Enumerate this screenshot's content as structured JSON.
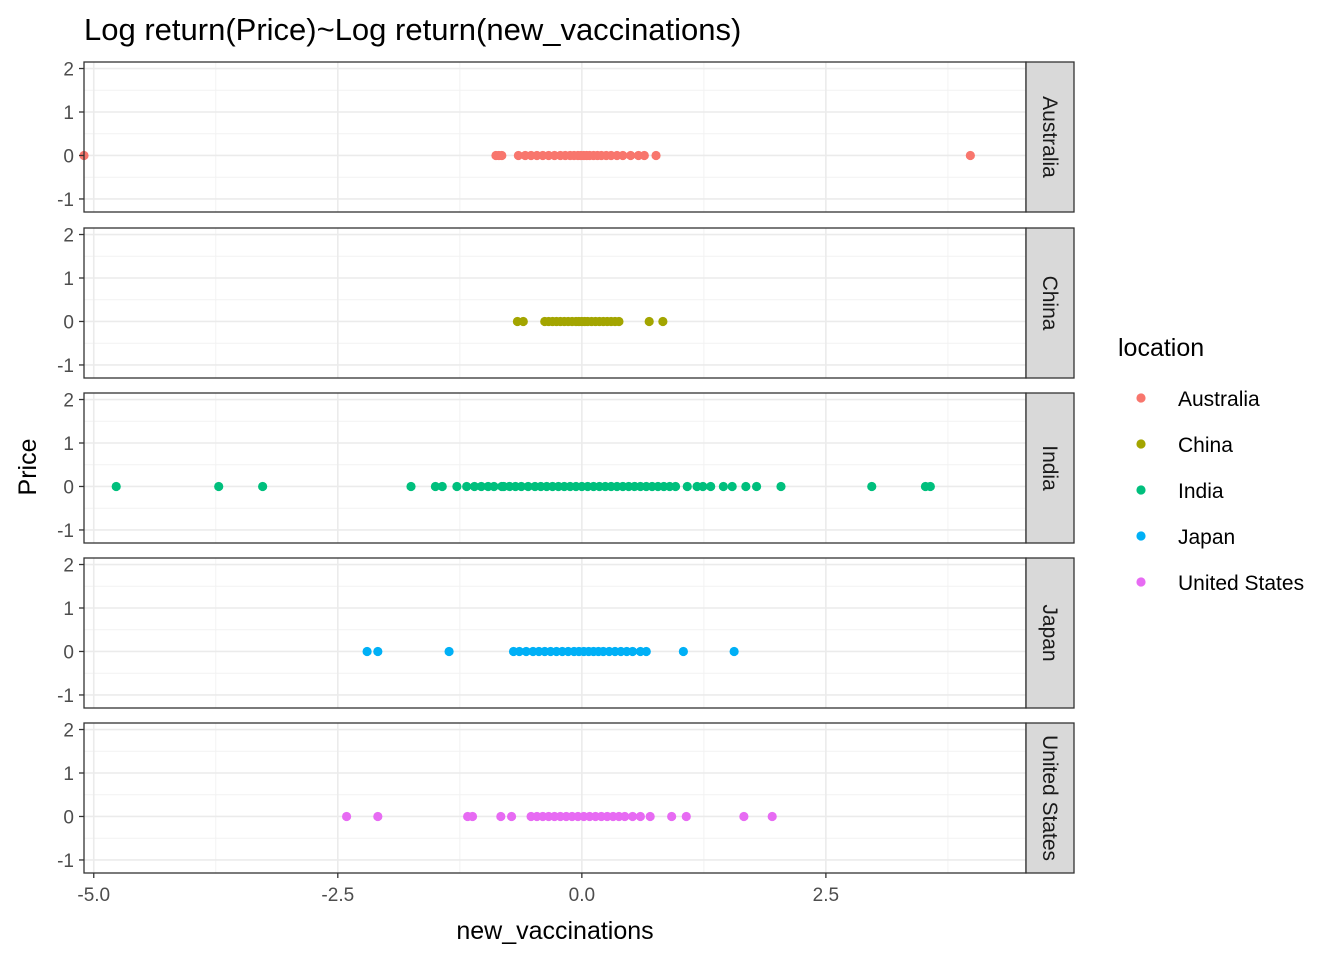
{
  "chart_data": {
    "type": "scatter",
    "title": "Log return(Price)~Log return(new_vaccinations)",
    "xlabel": "new_vaccinations",
    "ylabel": "Price",
    "xlim": [
      -5.1,
      4.55
    ],
    "ylim": [
      -1.3,
      2.15
    ],
    "x_ticks": [
      -5.0,
      -2.5,
      0.0,
      2.5
    ],
    "x_tick_labels": [
      "-5.0",
      "-2.5",
      "0.0",
      "2.5"
    ],
    "y_ticks": [
      -1,
      0,
      1,
      2
    ],
    "y_tick_labels": [
      "-1",
      "0",
      "1",
      "2"
    ],
    "grid": true,
    "facet_by": "location",
    "legend": {
      "title": "location",
      "position": "right"
    },
    "series": [
      {
        "name": "Australia",
        "color": "#F8766D",
        "x": [
          -5.1,
          -0.88,
          -0.85,
          -0.82,
          -0.65,
          -0.58,
          -0.52,
          -0.46,
          -0.4,
          -0.34,
          -0.28,
          -0.22,
          -0.17,
          -0.12,
          -0.08,
          -0.04,
          -0.01,
          0.02,
          0.05,
          0.08,
          0.12,
          0.16,
          0.2,
          0.25,
          0.3,
          0.36,
          0.42,
          0.5,
          0.58,
          0.64,
          0.76,
          3.98
        ],
        "y": [
          0,
          0,
          0,
          0,
          0,
          0,
          0,
          0,
          0,
          0,
          0,
          0,
          0,
          0,
          0,
          0,
          0,
          0,
          0,
          0,
          0,
          0,
          0,
          0,
          0,
          0,
          0,
          0,
          0,
          0,
          0,
          0
        ]
      },
      {
        "name": "China",
        "color": "#A3A500",
        "x": [
          -0.66,
          -0.6,
          -0.38,
          -0.34,
          -0.3,
          -0.26,
          -0.22,
          -0.18,
          -0.14,
          -0.1,
          -0.06,
          -0.03,
          0.0,
          0.03,
          0.06,
          0.1,
          0.14,
          0.18,
          0.22,
          0.26,
          0.3,
          0.34,
          0.38,
          0.69,
          0.83
        ],
        "y": [
          0,
          0,
          0,
          0,
          0,
          0,
          0,
          0,
          0,
          0,
          0,
          0,
          0,
          0,
          0,
          0,
          0,
          0,
          0,
          0,
          0,
          0,
          0,
          0,
          0
        ]
      },
      {
        "name": "India",
        "color": "#00BF7D",
        "x": [
          -4.77,
          -3.72,
          -3.27,
          -1.75,
          -1.5,
          -1.43,
          -1.28,
          -1.18,
          -1.1,
          -1.03,
          -0.96,
          -0.9,
          -0.82,
          -0.8,
          -0.74,
          -0.68,
          -0.62,
          -0.55,
          -0.48,
          -0.42,
          -0.36,
          -0.3,
          -0.24,
          -0.18,
          -0.12,
          -0.06,
          0.0,
          0.06,
          0.12,
          0.18,
          0.24,
          0.3,
          0.36,
          0.42,
          0.48,
          0.54,
          0.6,
          0.66,
          0.72,
          0.78,
          0.84,
          0.9,
          0.96,
          1.08,
          1.18,
          1.24,
          1.32,
          1.45,
          1.54,
          1.68,
          1.79,
          2.04,
          2.97,
          3.52,
          3.57
        ],
        "y": [
          0,
          0,
          0,
          0,
          0,
          0,
          0,
          0,
          0,
          0,
          0,
          0,
          0,
          0,
          0,
          0,
          0,
          0,
          0,
          0,
          0,
          0,
          0,
          0,
          0,
          0,
          0,
          0,
          0,
          0,
          0,
          0,
          0,
          0,
          0,
          0,
          0,
          0,
          0,
          0,
          0,
          0,
          0,
          0,
          0,
          0,
          0,
          0,
          0,
          0,
          0,
          0,
          0,
          0,
          0
        ]
      },
      {
        "name": "Japan",
        "color": "#00B0F6",
        "x": [
          -2.2,
          -2.09,
          -1.36,
          -0.7,
          -0.64,
          -0.57,
          -0.5,
          -0.44,
          -0.38,
          -0.32,
          -0.26,
          -0.2,
          -0.14,
          -0.08,
          -0.03,
          0.02,
          0.07,
          0.12,
          0.17,
          0.22,
          0.28,
          0.34,
          0.4,
          0.46,
          0.52,
          0.6,
          0.66,
          1.04,
          1.56
        ],
        "y": [
          0,
          0,
          0,
          0,
          0,
          0,
          0,
          0,
          0,
          0,
          0,
          0,
          0,
          0,
          0,
          0,
          0,
          0,
          0,
          0,
          0,
          0,
          0,
          0,
          0,
          0,
          0,
          0,
          0
        ]
      },
      {
        "name": "United States",
        "color": "#E76BF3",
        "x": [
          -2.41,
          -2.09,
          -1.17,
          -1.12,
          -0.83,
          -0.72,
          -0.52,
          -0.46,
          -0.4,
          -0.34,
          -0.28,
          -0.22,
          -0.16,
          -0.1,
          -0.04,
          0.02,
          0.08,
          0.14,
          0.2,
          0.26,
          0.32,
          0.38,
          0.44,
          0.52,
          0.6,
          0.7,
          0.92,
          1.07,
          1.66,
          1.95
        ],
        "y": [
          0,
          0,
          0,
          0,
          0,
          0,
          0,
          0,
          0,
          0,
          0,
          0,
          0,
          0,
          0,
          0,
          0,
          0,
          0,
          0,
          0,
          0,
          0,
          0,
          0,
          0,
          0,
          0,
          0,
          0
        ]
      }
    ]
  }
}
